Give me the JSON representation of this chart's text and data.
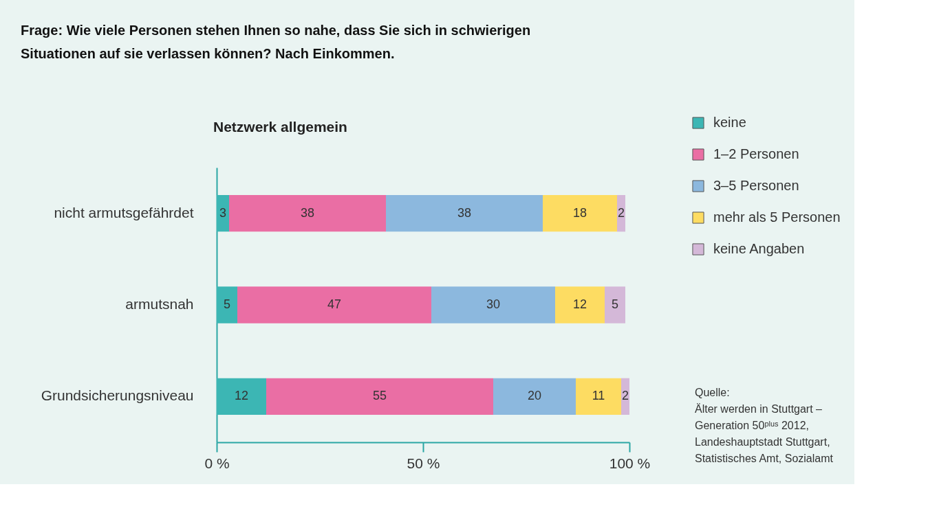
{
  "chart_data": {
    "type": "bar",
    "orientation": "horizontal",
    "stacked": true,
    "title": "Frage: Wie viele Personen stehen Ihnen so nahe, dass Sie sich in schwierigen Situationen auf sie verlassen können? Nach Einkommen.",
    "subtitle": "Netzwerk allgemein",
    "categories": [
      "nicht armutsgefährdet",
      "armutsnah",
      "Grundsicherungsniveau"
    ],
    "series": [
      {
        "name": "keine",
        "color": "#3cb6b4",
        "values": [
          3,
          5,
          12
        ]
      },
      {
        "name": "1–2 Personen",
        "color": "#ea6ea4",
        "values": [
          38,
          47,
          55
        ]
      },
      {
        "name": "3–5 Personen",
        "color": "#8cb8de",
        "values": [
          38,
          30,
          20
        ]
      },
      {
        "name": "mehr als 5 Personen",
        "color": "#fddc62",
        "values": [
          18,
          12,
          11
        ]
      },
      {
        "name": "keine Angaben",
        "color": "#d4b8d8",
        "values": [
          2,
          5,
          2
        ]
      }
    ],
    "xlim": [
      0,
      100
    ],
    "xticks": [
      {
        "value": 0,
        "label": "0 %"
      },
      {
        "value": 50,
        "label": "50 %"
      },
      {
        "value": 100,
        "label": "100 %"
      }
    ],
    "data_labels": true,
    "grid": false,
    "legend": "right",
    "annotations": [
      "Quelle:\nÄlter werden in Stuttgart –\nGeneration 50ᵖˡᵘˢ 2012,\nLandeshauptstadt Stuttgart,\nStatistisches Amt, Sozialamt"
    ]
  }
}
